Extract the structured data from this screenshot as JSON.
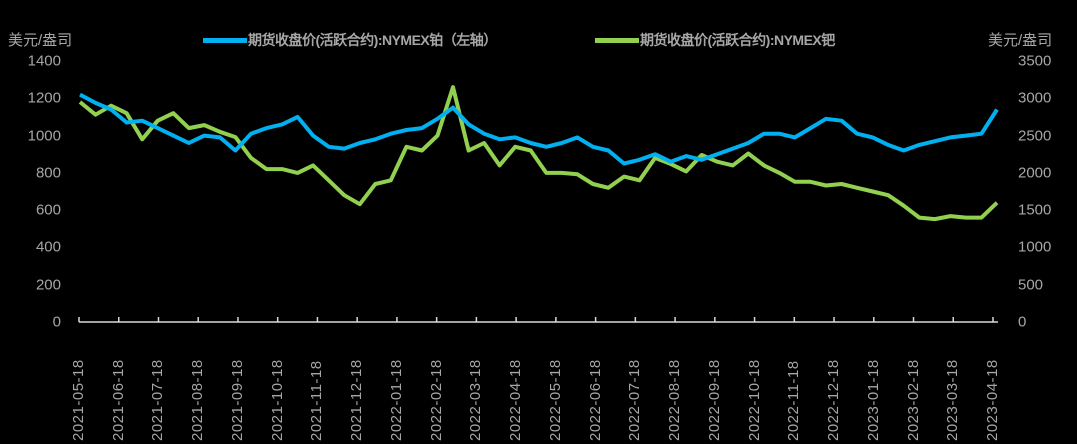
{
  "chart_data": {
    "type": "line",
    "title": "",
    "units": {
      "left": "美元/盎司",
      "right": "美元/盎司"
    },
    "legend": [
      {
        "name": "期货收盘价(活跃合约):NYMEX铂（左轴）",
        "color": "#00b0f0",
        "axis": "left"
      },
      {
        "name": "期货收盘价(活跃合约):NYMEX钯",
        "color": "#92d050",
        "axis": "right"
      }
    ],
    "left_axis": {
      "ticks": [
        0,
        200,
        400,
        600,
        800,
        1000,
        1200,
        1400
      ],
      "ylim": [
        0,
        1400
      ]
    },
    "right_axis": {
      "ticks": [
        0,
        500,
        1000,
        1500,
        2000,
        2500,
        3000,
        3500
      ],
      "ylim": [
        0,
        3500
      ]
    },
    "x_tick_labels": [
      "2021-05-18",
      "2021-06-18",
      "2021-07-18",
      "2021-08-18",
      "2021-09-18",
      "2021-10-18",
      "2021-11-18",
      "2021-12-18",
      "2022-01-18",
      "2022-02-18",
      "2022-03-18",
      "2022-04-18",
      "2022-05-18",
      "2022-06-18",
      "2022-07-18",
      "2022-08-18",
      "2022-09-18",
      "2022-10-18",
      "2022-11-18",
      "2022-12-18",
      "2023-01-18",
      "2023-02-18",
      "2023-03-18",
      "2023-04-18"
    ],
    "grid": false,
    "legend_position": "top",
    "series": [
      {
        "name": "期货收盘价(活跃合约):NYMEX铂（左轴）",
        "axis": "left",
        "values": [
          1220,
          1175,
          1140,
          1070,
          1080,
          1040,
          1000,
          960,
          1000,
          990,
          920,
          1010,
          1040,
          1060,
          1100,
          1000,
          940,
          930,
          960,
          980,
          1010,
          1030,
          1040,
          1090,
          1150,
          1060,
          1010,
          980,
          990,
          960,
          940,
          960,
          990,
          940,
          920,
          850,
          870,
          900,
          860,
          890,
          870,
          900,
          930,
          960,
          1010,
          1010,
          990,
          1040,
          1090,
          1080,
          1010,
          990,
          950,
          920,
          950,
          970,
          990,
          1000,
          1010,
          1140
        ]
      },
      {
        "name": "期货收盘价(活跃合约):NYMEX钯",
        "axis": "right",
        "values": [
          2950,
          2780,
          2900,
          2800,
          2450,
          2700,
          2800,
          2600,
          2640,
          2550,
          2480,
          2200,
          2050,
          2050,
          2000,
          2100,
          1900,
          1700,
          1580,
          1850,
          1900,
          2350,
          2300,
          2500,
          3150,
          2300,
          2400,
          2100,
          2350,
          2300,
          2000,
          2000,
          1980,
          1850,
          1800,
          1950,
          1900,
          2200,
          2120,
          2020,
          2240,
          2150,
          2100,
          2260,
          2100,
          2000,
          1880,
          1880,
          1830,
          1850,
          1800,
          1750,
          1700,
          1560,
          1400,
          1380,
          1420,
          1400,
          1400,
          1600
        ]
      }
    ]
  }
}
